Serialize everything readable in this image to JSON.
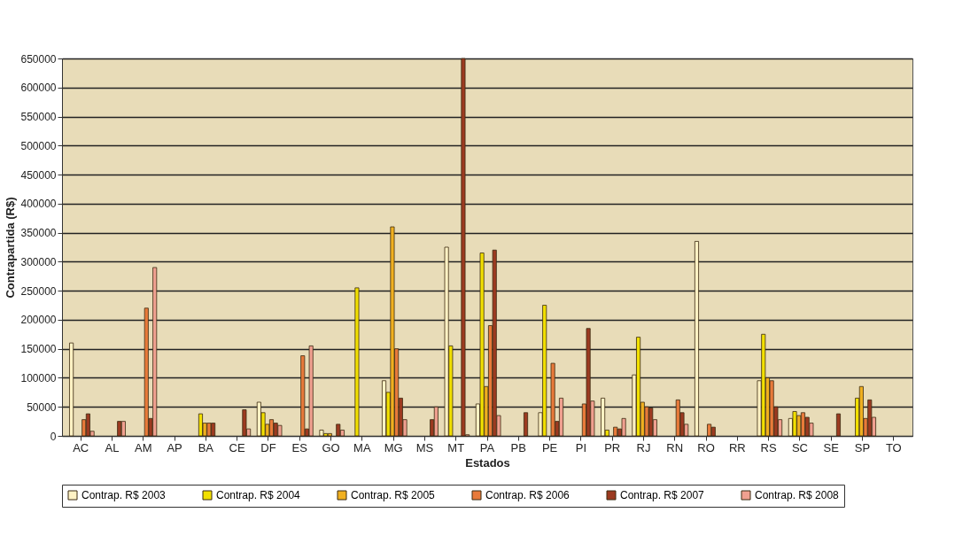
{
  "chart_data": {
    "type": "bar",
    "xlabel": "Estados",
    "ylabel": "Contrapartida (R$)",
    "categories": [
      "AC",
      "AL",
      "AM",
      "AP",
      "BA",
      "CE",
      "DF",
      "ES",
      "GO",
      "MA",
      "MG",
      "MS",
      "MT",
      "PA",
      "PB",
      "PE",
      "PI",
      "PR",
      "RJ",
      "RN",
      "RO",
      "RR",
      "RS",
      "SC",
      "SE",
      "SP",
      "TO"
    ],
    "series": [
      {
        "name": "Contrap. R$ 2003",
        "color": "#fff2c4",
        "values": [
          160000,
          null,
          null,
          null,
          null,
          null,
          58000,
          null,
          10000,
          null,
          95000,
          null,
          325000,
          55000,
          null,
          40000,
          null,
          65000,
          105000,
          null,
          335000,
          null,
          95000,
          30000,
          null,
          null,
          null
        ]
      },
      {
        "name": "Contrap. R$ 2004",
        "color": "#f2e000",
        "values": [
          null,
          null,
          null,
          null,
          38000,
          null,
          40000,
          null,
          4000,
          255000,
          75000,
          null,
          155000,
          315000,
          null,
          225000,
          null,
          10000,
          170000,
          null,
          null,
          null,
          175000,
          42000,
          null,
          65000,
          null
        ]
      },
      {
        "name": "Contrap. R$ 2005",
        "color": "#f0b020",
        "values": [
          null,
          null,
          null,
          null,
          22000,
          null,
          20000,
          null,
          4000,
          null,
          360000,
          null,
          null,
          85000,
          null,
          null,
          null,
          null,
          58000,
          null,
          null,
          null,
          100000,
          35000,
          null,
          85000,
          null
        ]
      },
      {
        "name": "Contrap. R$ 2006",
        "color": "#e87a3a",
        "values": [
          28000,
          null,
          220000,
          null,
          22000,
          null,
          28000,
          138000,
          null,
          null,
          150000,
          null,
          null,
          190000,
          null,
          125000,
          55000,
          15000,
          50000,
          62000,
          20000,
          null,
          95000,
          40000,
          null,
          30000,
          null
        ]
      },
      {
        "name": "Contrap. R$ 2007",
        "color": "#9c3a20",
        "values": [
          38000,
          25000,
          30000,
          null,
          22000,
          45000,
          22000,
          12000,
          20000,
          null,
          65000,
          28000,
          650000,
          320000,
          40000,
          25000,
          185000,
          12000,
          48000,
          40000,
          15000,
          null,
          50000,
          32000,
          38000,
          62000,
          null
        ]
      },
      {
        "name": "Contrap. R$ 2008",
        "color": "#f0a090",
        "values": [
          8000,
          25000,
          290000,
          null,
          null,
          12000,
          18000,
          155000,
          10000,
          null,
          28000,
          50000,
          2000,
          35000,
          null,
          65000,
          60000,
          30000,
          28000,
          20000,
          null,
          null,
          28000,
          22000,
          null,
          32000,
          null
        ]
      }
    ],
    "ylim": [
      0,
      650000
    ],
    "yticks": [
      0,
      50000,
      100000,
      150000,
      200000,
      250000,
      300000,
      350000,
      400000,
      450000,
      500000,
      550000,
      600000,
      650000
    ],
    "grid": "y",
    "legend": "bottom"
  }
}
